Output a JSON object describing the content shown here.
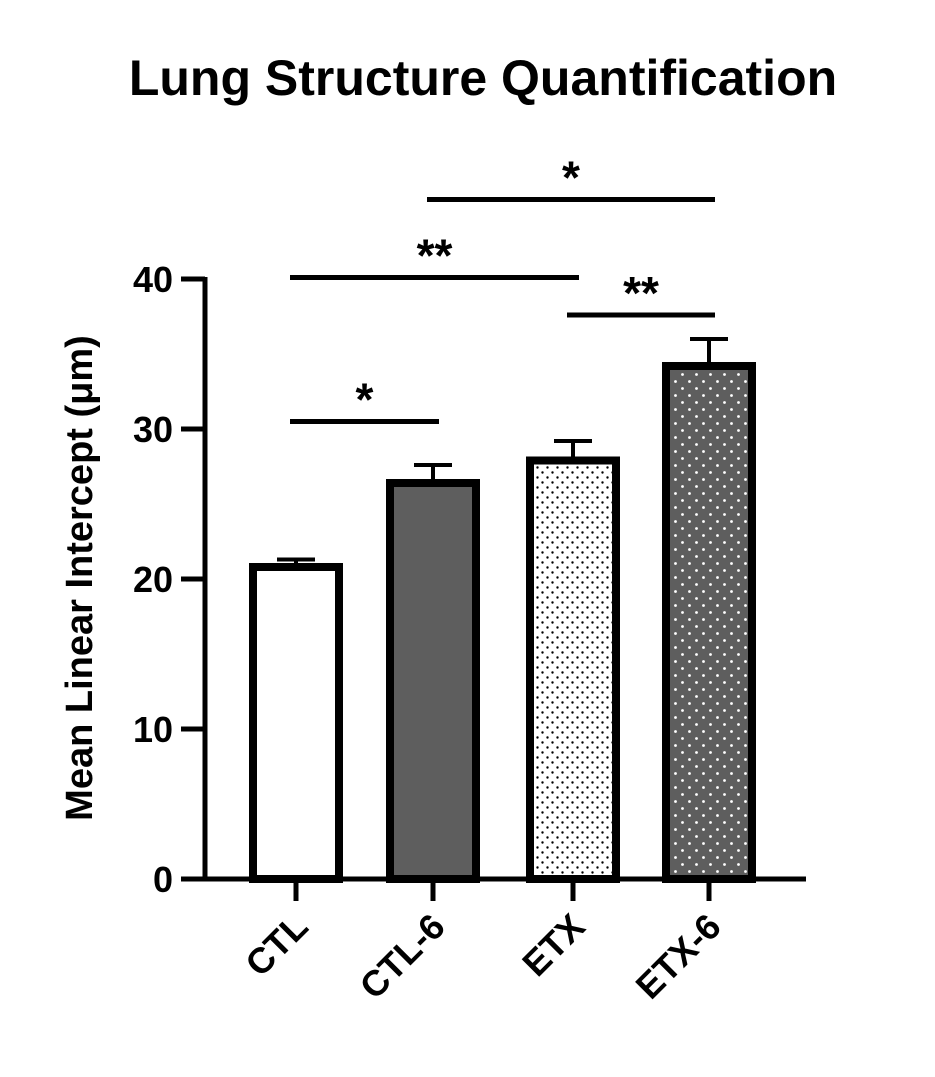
{
  "chart_data": {
    "type": "bar",
    "title": "Lung Structure Quantification",
    "xlabel": "",
    "ylabel": "Mean Linear Intercept (μm)",
    "ylim": [
      0,
      40
    ],
    "yticks": [
      0,
      10,
      20,
      30,
      40
    ],
    "categories": [
      "CTL",
      "CTL-6",
      "ETX",
      "ETX-6"
    ],
    "values": [
      20.8,
      26.4,
      27.9,
      34.2
    ],
    "error_upper": [
      0.5,
      1.2,
      1.3,
      1.8
    ],
    "bar_styles": [
      {
        "fill": "#ffffff",
        "pattern": "none"
      },
      {
        "fill": "#5e5e5e",
        "pattern": "none"
      },
      {
        "fill": "#ffffff",
        "pattern": "black-dots"
      },
      {
        "fill": "#5e5e5e",
        "pattern": "white-dots"
      }
    ],
    "significance": [
      {
        "from": "CTL",
        "to": "CTL-6",
        "label": "*",
        "y": 30.5
      },
      {
        "from": "CTL",
        "to": "ETX",
        "label": "**",
        "y": 40.1
      },
      {
        "from": "ETX",
        "to": "ETX-6",
        "label": "**",
        "y": 37.6
      },
      {
        "from": "CTL-6",
        "to": "ETX-6",
        "label": "*",
        "y": 45.3
      }
    ],
    "grid": false,
    "legend": "none"
  }
}
